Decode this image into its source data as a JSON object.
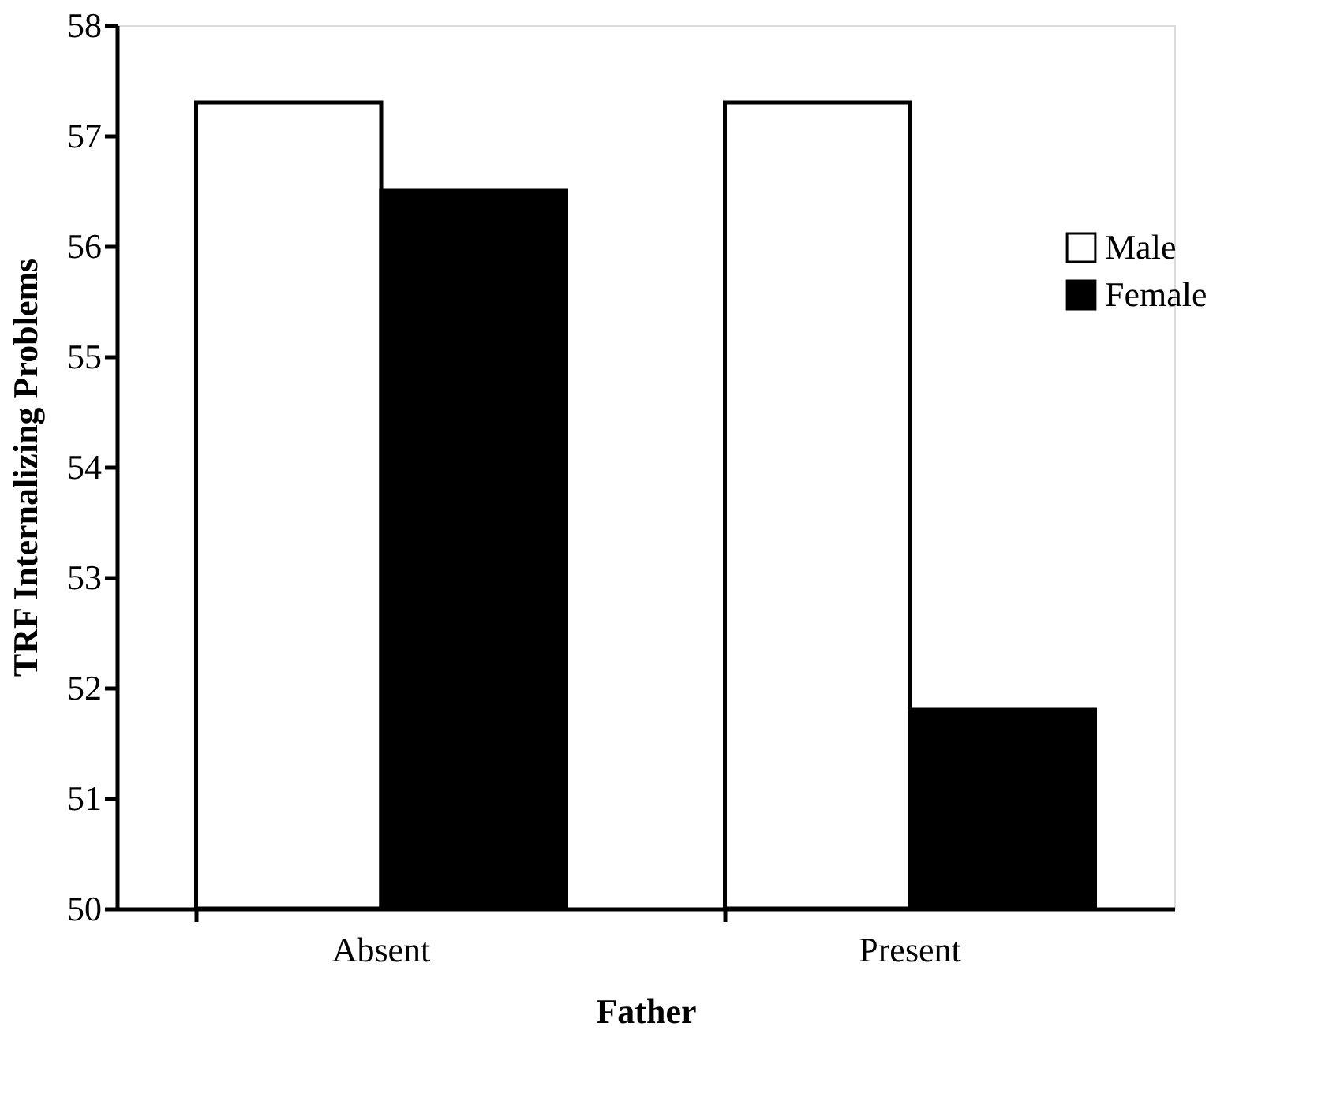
{
  "chart_data": {
    "type": "bar",
    "xlabel": "Father",
    "ylabel": "TRF Internalizing Problems",
    "categories": [
      "Absent",
      "Present"
    ],
    "series": [
      {
        "name": "Male",
        "color": "#ffffff",
        "values": [
          57.3,
          57.3
        ]
      },
      {
        "name": "Female",
        "color": "#000000",
        "values": [
          56.5,
          51.8
        ]
      }
    ],
    "ylim": [
      50,
      58
    ],
    "yticks": [
      50,
      51,
      52,
      53,
      54,
      55,
      56,
      57,
      58
    ],
    "grid": false,
    "legend": "top right"
  }
}
